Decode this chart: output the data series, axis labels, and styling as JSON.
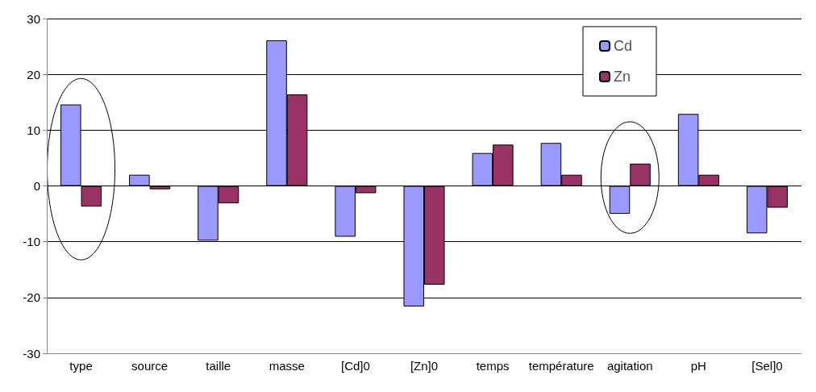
{
  "chart_data": {
    "type": "bar",
    "categories": [
      "type",
      "source",
      "taille",
      "masse",
      "[Cd]0",
      "[Zn]0",
      "temps",
      "température",
      "agitation",
      "pH",
      "[Sel]0"
    ],
    "series": [
      {
        "name": "Cd",
        "color": "#9999ff",
        "values": [
          14.6,
          2.0,
          -9.8,
          26.1,
          -9.1,
          -21.6,
          5.9,
          7.7,
          -5.0,
          12.9,
          -8.5
        ]
      },
      {
        "name": "Zn",
        "color": "#993366",
        "values": [
          -3.7,
          -0.6,
          -3.1,
          16.4,
          -1.3,
          -17.7,
          7.4,
          2.0,
          4.0,
          2.0,
          -3.9
        ]
      }
    ],
    "ylim": [
      -30,
      30
    ],
    "yticks": [
      -30,
      -20,
      -10,
      0,
      10,
      20,
      30
    ],
    "grid": "y",
    "legend": "top right"
  }
}
